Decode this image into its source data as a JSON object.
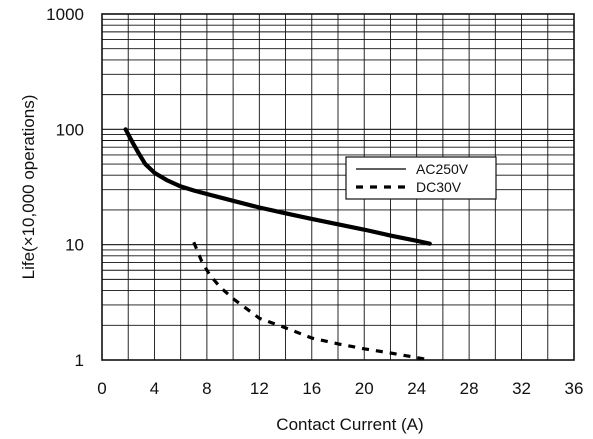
{
  "chart_data": {
    "type": "line",
    "xlabel": "Contact Current (A)",
    "ylabel": "Life(×10,000 operations)",
    "xlim": [
      0,
      36
    ],
    "ylim": [
      1,
      1000
    ],
    "y_scale": "log",
    "grid": true,
    "legend_position": "center-right",
    "x_ticks": [
      "0",
      "4",
      "8",
      "12",
      "16",
      "20",
      "24",
      "28",
      "32",
      "36"
    ],
    "y_ticks": [
      "1",
      "10",
      "100",
      "1000"
    ],
    "series": [
      {
        "name": "AC250V",
        "style": "solid",
        "color": "#000000",
        "x": [
          1.8,
          2.3,
          2.8,
          3.3,
          4.0,
          5.0,
          6.0,
          7.0,
          8.0,
          10.0,
          12.0,
          14.0,
          16.0,
          18.0,
          20.0,
          22.0,
          24.0,
          25.0
        ],
        "y": [
          100,
          78,
          62,
          50,
          42,
          36,
          32,
          29.5,
          27.5,
          24,
          21,
          18.7,
          16.7,
          15,
          13.5,
          12,
          10.8,
          10.2
        ]
      },
      {
        "name": "DC30V",
        "style": "dashed",
        "color": "#000000",
        "x": [
          7.0,
          7.6,
          8.2,
          9.0,
          10.0,
          11.0,
          12.0,
          14.0,
          16.0,
          18.0,
          20.0,
          22.0,
          24.0,
          25.0
        ],
        "y": [
          10.5,
          7.2,
          5.5,
          4.3,
          3.4,
          2.8,
          2.3,
          1.9,
          1.55,
          1.38,
          1.25,
          1.15,
          1.05,
          1.0
        ]
      }
    ]
  }
}
